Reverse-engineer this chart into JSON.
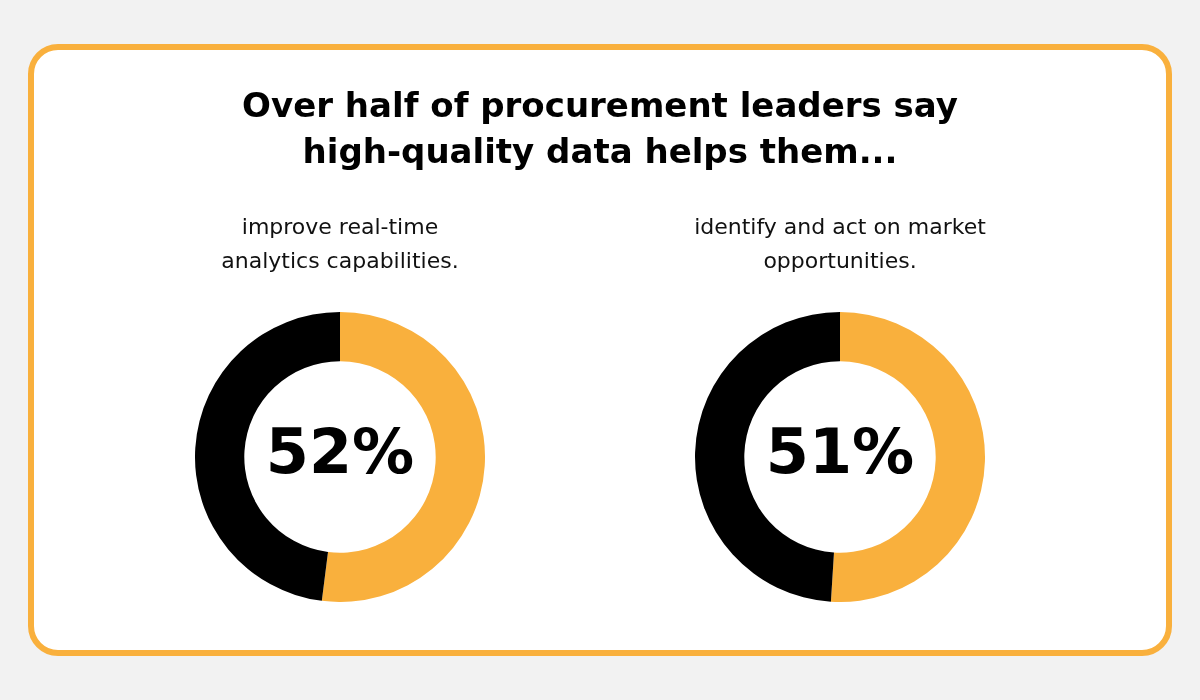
{
  "chart_data": [
    {
      "type": "other",
      "title": "Over half of procurement leaders say high-quality data helps them..."
    },
    {
      "type": "donut",
      "subtitle": "improve real-time analytics capabilities.",
      "categories": [
        null,
        null
      ],
      "values": [
        52,
        48
      ],
      "colors": [
        "#f9b03d",
        "#000000"
      ],
      "value_labels": [
        "52%",
        null
      ],
      "legend": false
    },
    {
      "type": "donut",
      "subtitle": "identify and act on market opportunities.",
      "categories": [
        null,
        null
      ],
      "values": [
        51,
        49
      ],
      "colors": [
        "#f9b03d",
        "#000000"
      ],
      "value_labels": [
        "51%",
        null
      ],
      "legend": false
    }
  ]
}
